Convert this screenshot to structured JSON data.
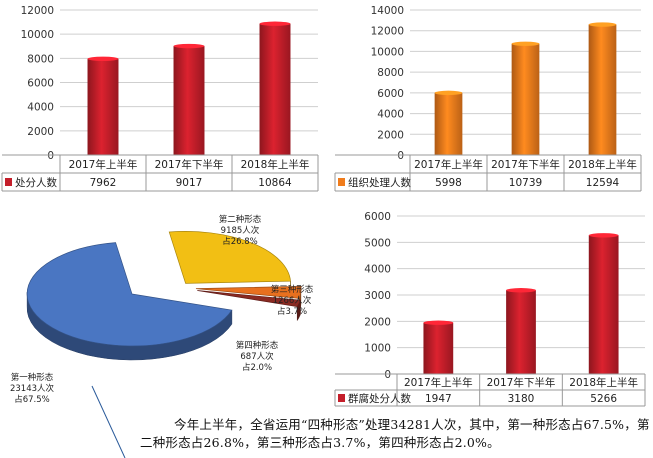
{
  "caption": "今年上半年，全省运用“四种形态”处理34281人次，其中，第一种形态占67.5%，第二种形态占26.8%，第三种形态占3.7%，第四种形态占2.0%。",
  "chart_data": [
    {
      "type": "bar",
      "categories": [
        "2017年上半年",
        "2017年下半年",
        "2018年上半年"
      ],
      "series": [
        {
          "name": "处分人数",
          "values": [
            7962,
            9017,
            10864
          ]
        }
      ],
      "ylim": [
        0,
        12000
      ],
      "yticks": [
        0,
        2000,
        4000,
        6000,
        8000,
        10000,
        12000
      ],
      "color": "#c41e2a",
      "grid": true,
      "table": true
    },
    {
      "type": "bar",
      "categories": [
        "2017年上半年",
        "2017年下半年",
        "2018年上半年"
      ],
      "series": [
        {
          "name": "组织处理人数",
          "values": [
            5998,
            10739,
            12594
          ]
        }
      ],
      "ylim": [
        0,
        14000
      ],
      "yticks": [
        0,
        2000,
        4000,
        6000,
        8000,
        10000,
        12000,
        14000
      ],
      "color": "#f07c1c",
      "grid": true,
      "table": true
    },
    {
      "type": "pie",
      "slices": [
        {
          "label": "第一种形态",
          "count": "23143人次",
          "share": "占67.5%",
          "value": 67.5,
          "color": "#4a76c2"
        },
        {
          "label": "第二种形态",
          "count": "9185人次",
          "share": "占26.8%",
          "value": 26.8,
          "color": "#f2bf14"
        },
        {
          "label": "第三种形态",
          "count": "1266人次",
          "share": "占3.7%",
          "value": 3.7,
          "color": "#e8701f"
        },
        {
          "label": "第四种形态",
          "count": "687人次",
          "share": "占2.0%",
          "value": 2.0,
          "color": "#8a2a22"
        }
      ]
    },
    {
      "type": "bar",
      "categories": [
        "2017年上半年",
        "2017年下半年",
        "2018年上半年"
      ],
      "series": [
        {
          "name": "群腐处分人数",
          "values": [
            1947,
            3180,
            5266
          ]
        }
      ],
      "ylim": [
        0,
        6000
      ],
      "yticks": [
        0,
        1000,
        2000,
        3000,
        4000,
        5000,
        6000
      ],
      "color": "#c41e2a",
      "grid": true,
      "table": true
    }
  ]
}
